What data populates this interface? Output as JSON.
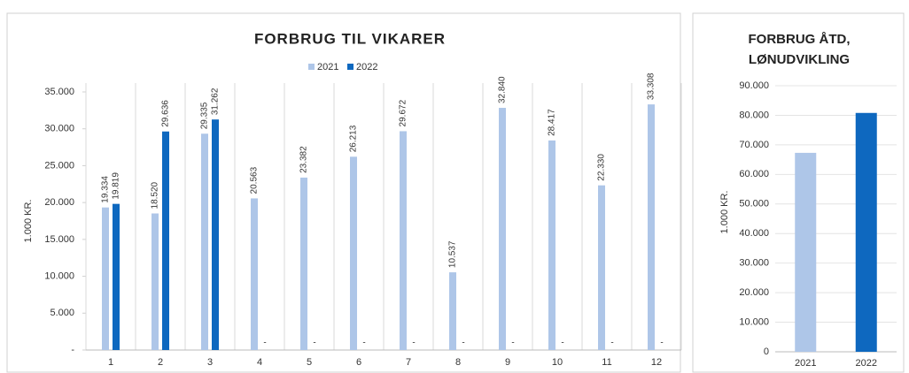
{
  "chart_data": [
    {
      "type": "bar",
      "title": "FORBRUG TIL VIKARER",
      "y_label": "1.000 KR.",
      "categories": [
        "1",
        "2",
        "3",
        "4",
        "5",
        "6",
        "7",
        "8",
        "9",
        "10",
        "11",
        "12"
      ],
      "series": [
        {
          "name": "2021",
          "color": "#aec6e8",
          "values": [
            19334,
            18520,
            29335,
            20563,
            23382,
            26213,
            29672,
            10537,
            32840,
            28417,
            22330,
            33308
          ],
          "value_labels": [
            "19.334",
            "18.520",
            "29.335",
            "20.563",
            "23.382",
            "26.213",
            "29.672",
            "10.537",
            "32.840",
            "28.417",
            "22.330",
            "33.308"
          ]
        },
        {
          "name": "2022",
          "color": "#0e68bf",
          "values": [
            19819,
            29636,
            31262,
            0,
            0,
            0,
            0,
            0,
            0,
            0,
            0,
            0
          ],
          "value_labels": [
            "19.819",
            "29.636",
            "31.262",
            "-",
            "-",
            "-",
            "-",
            "-",
            "-",
            "-",
            "-",
            "-"
          ]
        }
      ],
      "ylim": [
        0,
        35000
      ],
      "yticks": [
        {
          "value": 0,
          "label": "-"
        },
        {
          "value": 5000,
          "label": "5.000"
        },
        {
          "value": 10000,
          "label": "10.000"
        },
        {
          "value": 15000,
          "label": "15.000"
        },
        {
          "value": 20000,
          "label": "20.000"
        },
        {
          "value": 25000,
          "label": "25.000"
        },
        {
          "value": 30000,
          "label": "30.000"
        },
        {
          "value": 35000,
          "label": "35.000"
        }
      ],
      "legend": "top",
      "grid": false
    },
    {
      "type": "bar",
      "title": [
        "FORBRUG ÅTD,",
        "LØNUDVIKLING"
      ],
      "y_label": "1.000 KR.",
      "categories": [
        "2021",
        "2022"
      ],
      "values": [
        67300,
        80800
      ],
      "colors": [
        "#aec6e8",
        "#0e68bf"
      ],
      "ylim": [
        0,
        90000
      ],
      "yticks": [
        0,
        {
          "value": 10000,
          "label": "10.000"
        },
        {
          "value": 20000,
          "label": "20.000"
        },
        {
          "value": 30000,
          "label": "30.000"
        },
        {
          "value": 40000,
          "label": "40.000"
        },
        {
          "value": 50000,
          "label": "50.000"
        },
        {
          "value": 60000,
          "label": "60.000"
        },
        {
          "value": 70000,
          "label": "70.000"
        },
        {
          "value": 80000,
          "label": "80.000"
        },
        {
          "value": 90000,
          "label": "90.000"
        }
      ],
      "grid": true
    }
  ]
}
